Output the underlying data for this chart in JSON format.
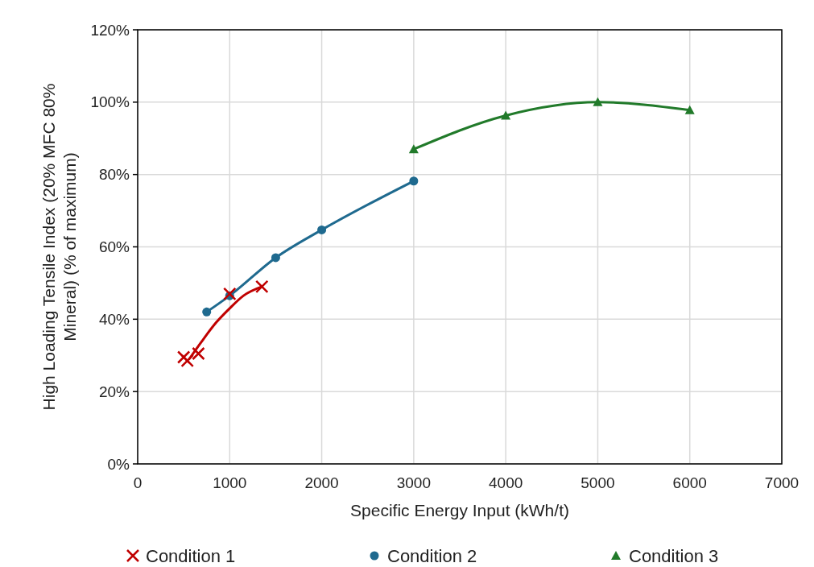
{
  "chart_data": {
    "type": "line",
    "xlabel": "Specific Energy Input (kWh/t)",
    "ylabel": "High Loading Tensile Index (20% MFC 80% Mineral) (% of maximum)",
    "xlim": [
      0,
      7000
    ],
    "xticks": [
      0,
      1000,
      2000,
      3000,
      4000,
      5000,
      6000,
      7000
    ],
    "ylim": [
      0,
      120
    ],
    "yticks": [
      {
        "value": 0,
        "label": "0%"
      },
      {
        "value": 20,
        "label": "20%"
      },
      {
        "value": 40,
        "label": "40%"
      },
      {
        "value": 60,
        "label": "60%"
      },
      {
        "value": 80,
        "label": "80%"
      },
      {
        "value": 100,
        "label": "100%"
      },
      {
        "value": 120,
        "label": "120%"
      }
    ],
    "grid": true,
    "legend": "bottom",
    "series": [
      {
        "name": "Condition 1",
        "type": "scatter",
        "marker": "cross",
        "color": "#c00000",
        "x": [
          500,
          540,
          660,
          1000,
          1350
        ],
        "values": [
          29.5,
          28.5,
          30.5,
          47,
          49
        ]
      },
      {
        "marker": "none",
        "color": "#c00000",
        "x": [
          560,
          700,
          850,
          1000,
          1150,
          1350
        ],
        "values": [
          29,
          34,
          39,
          43,
          46.5,
          49
        ]
      },
      {
        "name": "Condition 2",
        "marker": "circle",
        "color": "#1f6a8f",
        "x": [
          750,
          1000,
          1500,
          2000,
          3000
        ],
        "values": [
          42,
          46.5,
          57,
          64.7,
          78.2
        ]
      },
      {
        "name": "Condition 3",
        "marker": "triangle",
        "color": "#217a2a",
        "x": [
          3000,
          4000,
          5000,
          6000
        ],
        "values": [
          87,
          96.3,
          100,
          97.8
        ]
      }
    ]
  }
}
